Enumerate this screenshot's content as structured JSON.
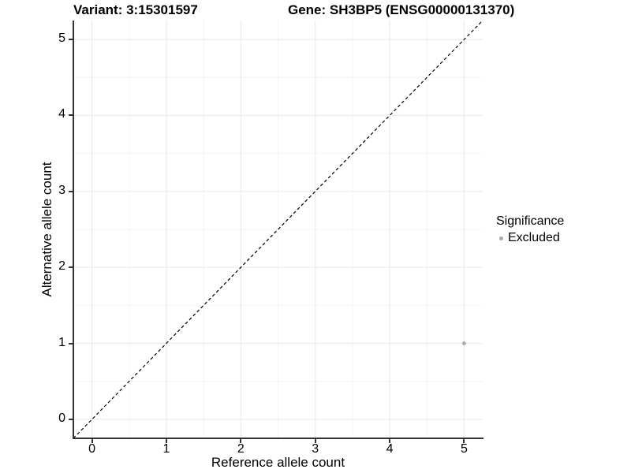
{
  "chart_data": {
    "type": "scatter",
    "title_left": "Variant: 3:15301597",
    "title_right": "Gene: SH3BP5 (ENSG00000131370)",
    "xlabel": "Reference allele count",
    "ylabel": "Alternative allele count",
    "xlim": [
      -0.25,
      5.25
    ],
    "ylim": [
      -0.25,
      5.25
    ],
    "x_ticks": [
      0,
      1,
      2,
      3,
      4,
      5
    ],
    "y_ticks": [
      0,
      1,
      2,
      3,
      4,
      5
    ],
    "x_minor_ticks": [
      0.5,
      1.5,
      2.5,
      3.5,
      4.5
    ],
    "y_minor_ticks": [
      0.5,
      1.5,
      2.5,
      3.5,
      4.5
    ],
    "grid": true,
    "grid_major_color": "#ebebeb",
    "grid_minor_color": "#f4f4f4",
    "identity_line": {
      "style": "dashed",
      "from": [
        -0.25,
        -0.25
      ],
      "to": [
        5.25,
        5.25
      ],
      "color": "#000000"
    },
    "series": [
      {
        "name": "Excluded",
        "color": "#aaaaaa",
        "points": [
          {
            "x": 5,
            "y": 1
          }
        ]
      }
    ],
    "legend": {
      "title": "Significance",
      "position": "right",
      "items": [
        {
          "label": "Excluded",
          "color": "#aaaaaa"
        }
      ]
    }
  }
}
